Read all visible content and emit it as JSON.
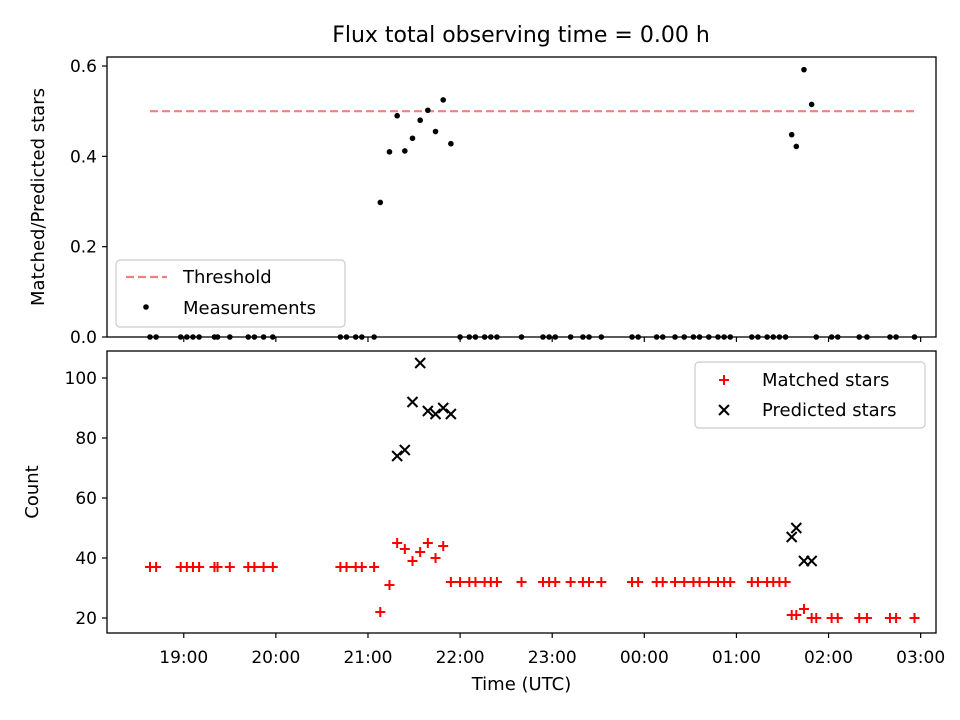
{
  "title": "Flux total observing time = 0.00 h",
  "chart_data": [
    {
      "type": "scatter",
      "ylabel": "Matched/Predicted stars",
      "ylim": [
        0,
        0.62
      ],
      "yticks": [
        "0.0",
        "0.2",
        "0.4",
        "0.6"
      ],
      "legend_position": "lower-left",
      "threshold": {
        "name": "Threshold",
        "value": 0.5,
        "x_range": [
          "18:38",
          "02:58"
        ],
        "color": "#f08080"
      },
      "series": [
        {
          "name": "Measurements",
          "color": "#000000",
          "x": [
            "18:38",
            "18:42",
            "18:58",
            "19:02",
            "19:06",
            "19:10",
            "19:20",
            "19:22",
            "19:30",
            "19:42",
            "19:46",
            "19:52",
            "19:58",
            "20:42",
            "20:46",
            "20:52",
            "20:56",
            "21:04",
            "21:08",
            "21:14",
            "21:19",
            "21:24",
            "21:29",
            "21:34",
            "21:39",
            "21:44",
            "21:49",
            "21:54",
            "22:00",
            "22:06",
            "22:10",
            "22:16",
            "22:20",
            "22:24",
            "22:40",
            "22:54",
            "22:58",
            "23:02",
            "23:12",
            "23:20",
            "23:24",
            "23:32",
            "23:52",
            "23:56",
            "24:08",
            "24:12",
            "24:20",
            "24:26",
            "24:32",
            "24:36",
            "24:42",
            "24:48",
            "24:52",
            "24:56",
            "25:10",
            "25:14",
            "25:20",
            "25:24",
            "25:28",
            "25:32",
            "25:36",
            "25:39",
            "25:44",
            "25:49",
            "25:52",
            "26:02",
            "26:06",
            "26:20",
            "26:25",
            "26:40",
            "26:44",
            "26:56"
          ],
          "y": [
            0,
            0,
            0,
            0,
            0,
            0,
            0,
            0,
            0,
            0,
            0,
            0,
            0,
            0,
            0,
            0,
            0,
            0,
            0.298,
            0.41,
            0.49,
            0.412,
            0.44,
            0.48,
            0.502,
            0.455,
            0.525,
            0.428,
            0,
            0,
            0,
            0,
            0,
            0,
            0,
            0,
            0,
            0,
            0,
            0,
            0,
            0,
            0,
            0,
            0,
            0,
            0,
            0,
            0,
            0,
            0,
            0,
            0,
            0,
            0,
            0,
            0,
            0,
            0,
            0,
            0.448,
            0.422,
            0.592,
            0.515,
            0,
            0,
            0,
            0,
            0,
            0,
            0,
            0
          ]
        }
      ]
    },
    {
      "type": "scatter",
      "xlabel": "Time (UTC)",
      "ylabel": "Count",
      "ylim": [
        15,
        109
      ],
      "yticks": [
        "20",
        "40",
        "60",
        "80",
        "100"
      ],
      "xlim": [
        "18:10",
        "03:10"
      ],
      "xticks": [
        "19:00",
        "20:00",
        "21:00",
        "22:00",
        "23:00",
        "00:00",
        "01:00",
        "02:00",
        "03:00"
      ],
      "legend_position": "top-right",
      "series": [
        {
          "name": "Matched stars",
          "marker": "plus",
          "color": "#ff0000",
          "x": [
            "18:38",
            "18:42",
            "18:58",
            "19:02",
            "19:06",
            "19:10",
            "19:20",
            "19:22",
            "19:30",
            "19:42",
            "19:46",
            "19:52",
            "19:58",
            "20:42",
            "20:46",
            "20:52",
            "20:56",
            "21:04",
            "21:08",
            "21:14",
            "21:19",
            "21:24",
            "21:29",
            "21:34",
            "21:39",
            "21:44",
            "21:49",
            "21:54",
            "22:00",
            "22:06",
            "22:10",
            "22:16",
            "22:20",
            "22:24",
            "22:40",
            "22:54",
            "22:58",
            "23:02",
            "23:12",
            "23:20",
            "23:24",
            "23:32",
            "23:52",
            "23:56",
            "24:08",
            "24:12",
            "24:20",
            "24:26",
            "24:32",
            "24:36",
            "24:42",
            "24:48",
            "24:52",
            "24:56",
            "25:10",
            "25:14",
            "25:20",
            "25:24",
            "25:28",
            "25:32",
            "25:36",
            "25:39",
            "25:44",
            "25:49",
            "25:52",
            "26:02",
            "26:06",
            "26:20",
            "26:25",
            "26:40",
            "26:44",
            "26:56"
          ],
          "y": [
            37,
            37,
            37,
            37,
            37,
            37,
            37,
            37,
            37,
            37,
            37,
            37,
            37,
            37,
            37,
            37,
            37,
            37,
            22,
            31,
            45,
            43,
            39,
            42,
            45,
            40,
            44,
            32,
            32,
            32,
            32,
            32,
            32,
            32,
            32,
            32,
            32,
            32,
            32,
            32,
            32,
            32,
            32,
            32,
            32,
            32,
            32,
            32,
            32,
            32,
            32,
            32,
            32,
            32,
            32,
            32,
            32,
            32,
            32,
            32,
            21,
            21,
            23,
            20,
            20,
            20,
            20,
            20,
            20,
            20,
            20,
            20
          ]
        },
        {
          "name": "Predicted stars",
          "marker": "x",
          "color": "#000000",
          "x": [
            "21:19",
            "21:24",
            "21:29",
            "21:34",
            "21:39",
            "21:44",
            "21:49",
            "21:54",
            "25:36",
            "25:39",
            "25:44",
            "25:49"
          ],
          "y": [
            74,
            76,
            92,
            105,
            89,
            88,
            90,
            88,
            47,
            50,
            39,
            39
          ]
        }
      ]
    }
  ]
}
